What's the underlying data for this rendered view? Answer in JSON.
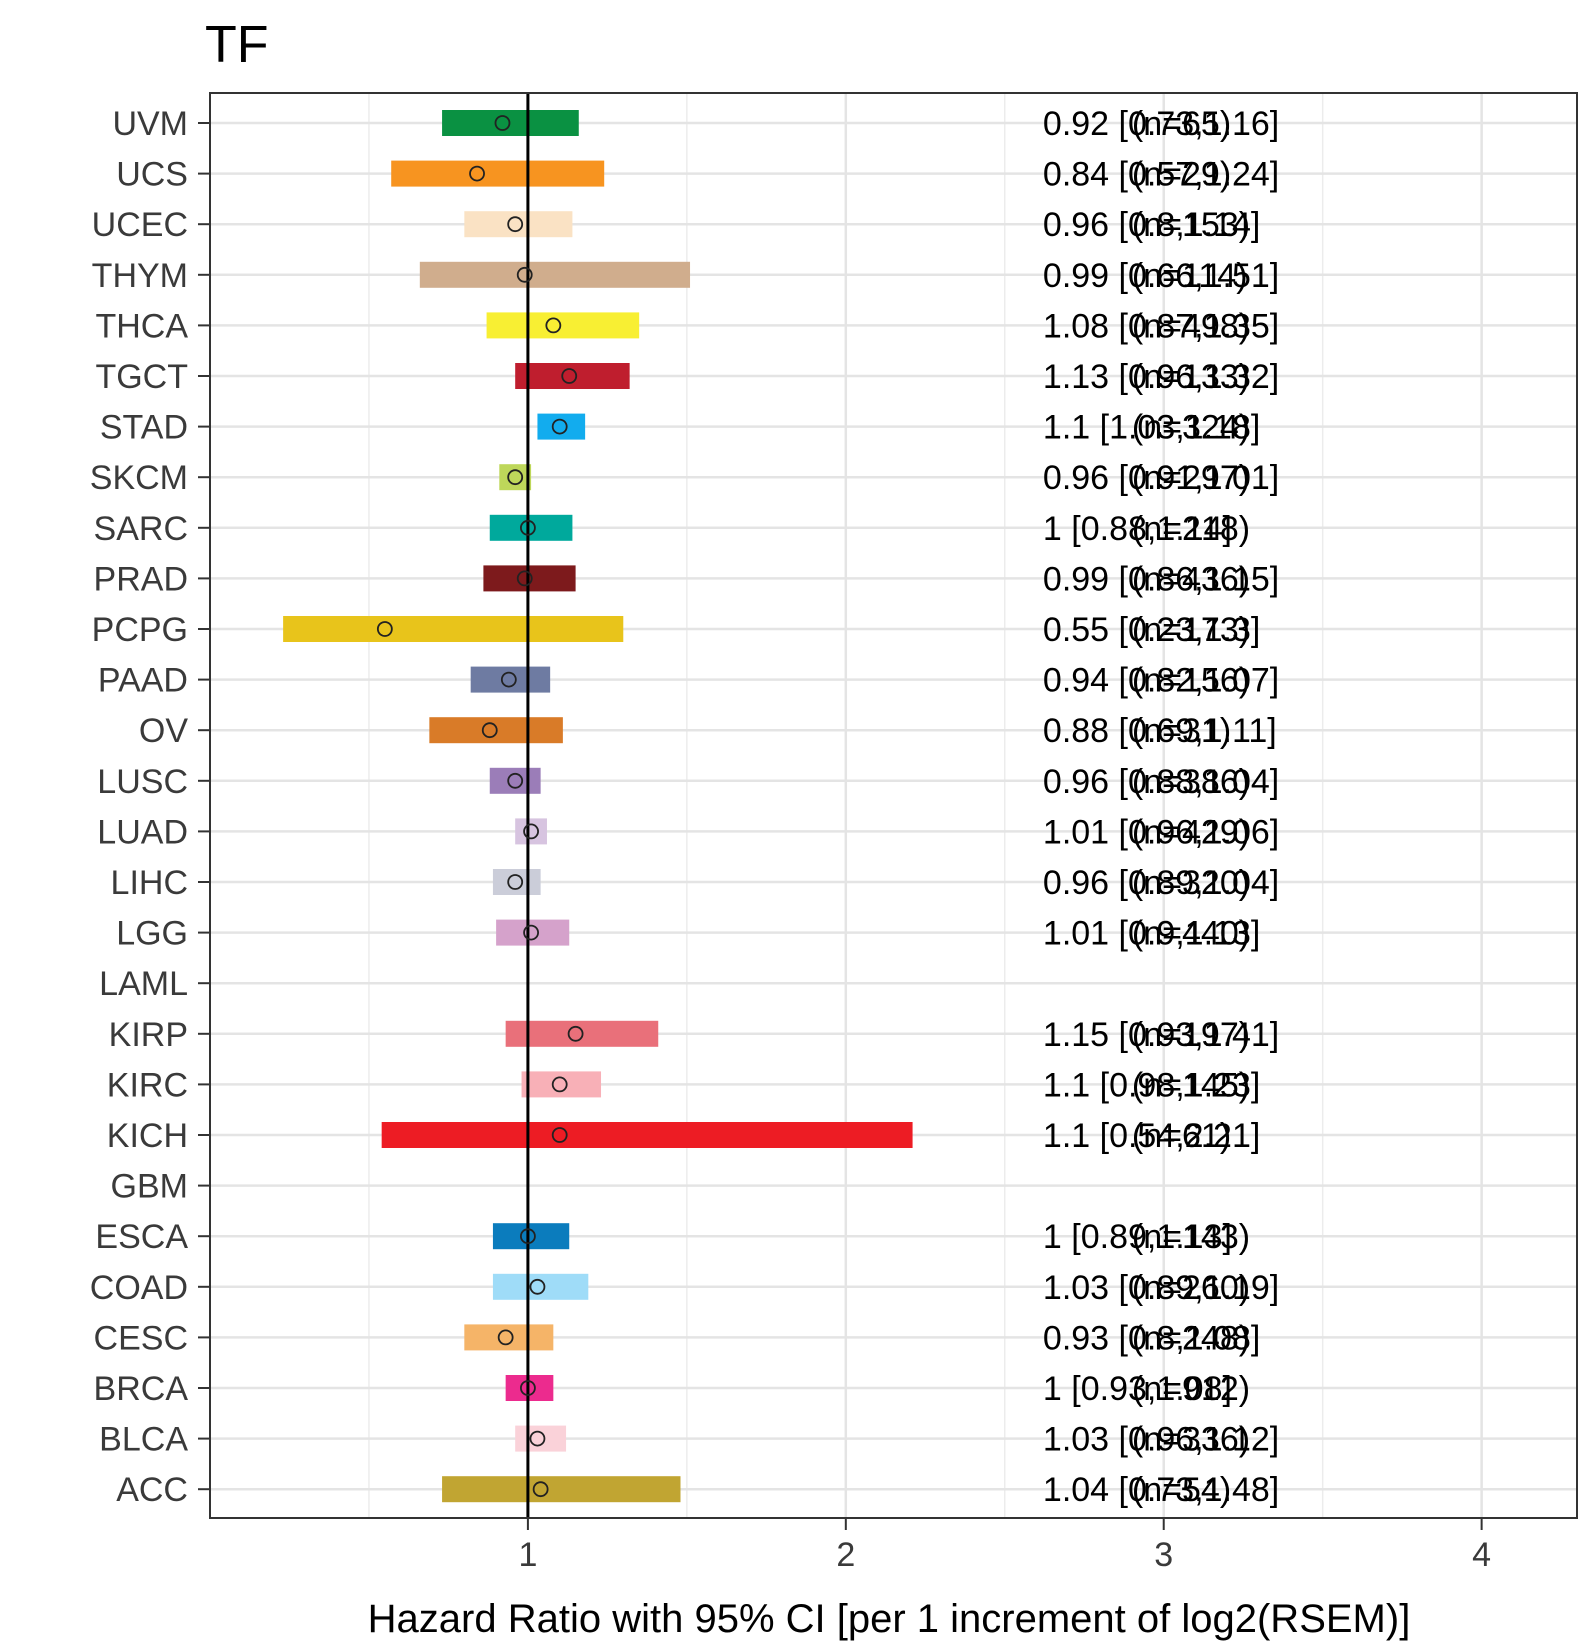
{
  "chart_data": {
    "type": "forest",
    "title": "TF",
    "xlabel": "Hazard Ratio with 95% CI [per 1 increment of log2(RSEM)]",
    "ylabel": "",
    "xlim": [
      0.0,
      4.3
    ],
    "x_ticks": [
      1,
      2,
      3,
      4
    ],
    "x_minor_ticks": [
      0.5,
      1.5,
      2.5,
      3.5
    ],
    "reference_line": 1,
    "grid": true,
    "legend": "none",
    "rows": [
      {
        "label": "UVM",
        "hr": 0.92,
        "lo": 0.73,
        "hi": 1.16,
        "ci_text": "0.92 [0.73,1.16]",
        "n_text": "(n=65)",
        "color": "#0a9142"
      },
      {
        "label": "UCS",
        "hr": 0.84,
        "lo": 0.57,
        "hi": 1.24,
        "ci_text": "0.84 [0.57,1.24]",
        "n_text": "(n=29)",
        "color": "#f79420"
      },
      {
        "label": "UCEC",
        "hr": 0.96,
        "lo": 0.8,
        "hi": 1.14,
        "ci_text": "0.96 [0.8,1.14]",
        "n_text": "(n=153)",
        "color": "#fae2c4"
      },
      {
        "label": "THYM",
        "hr": 0.99,
        "lo": 0.66,
        "hi": 1.51,
        "ci_text": "0.99 [0.66,1.51]",
        "n_text": "(n=114)",
        "color": "#d0ad8d"
      },
      {
        "label": "THCA",
        "hr": 1.08,
        "lo": 0.87,
        "hi": 1.35,
        "ci_text": "1.08 [0.87,1.35]",
        "n_text": "(n=498)",
        "color": "#f8ef33"
      },
      {
        "label": "TGCT",
        "hr": 1.13,
        "lo": 0.96,
        "hi": 1.32,
        "ci_text": "1.13 [0.96,1.32]",
        "n_text": "(n=133)",
        "color": "#bf1e2e"
      },
      {
        "label": "STAD",
        "hr": 1.1,
        "lo": 1.03,
        "hi": 1.18,
        "ci_text": "1.1 [1.03,1.18]",
        "n_text": "(n=324)",
        "color": "#12acee"
      },
      {
        "label": "SKCM",
        "hr": 0.96,
        "lo": 0.91,
        "hi": 1.01,
        "ci_text": "0.96 [0.91,1.01]",
        "n_text": "(n=297)",
        "color": "#bed75a"
      },
      {
        "label": "SARC",
        "hr": 1.0,
        "lo": 0.88,
        "hi": 1.14,
        "ci_text": "1 [0.88,1.14]",
        "n_text": "(n=218)",
        "color": "#00a99c"
      },
      {
        "label": "PRAD",
        "hr": 0.99,
        "lo": 0.86,
        "hi": 1.15,
        "ci_text": "0.99 [0.86,1.15]",
        "n_text": "(n=436)",
        "color": "#7d1a1c"
      },
      {
        "label": "PCPG",
        "hr": 0.55,
        "lo": 0.23,
        "hi": 1.3,
        "ci_text": "0.55 [0.23,1.3]",
        "n_text": "(n=173)",
        "color": "#e8c41b"
      },
      {
        "label": "PAAD",
        "hr": 0.94,
        "lo": 0.82,
        "hi": 1.07,
        "ci_text": "0.94 [0.82,1.07]",
        "n_text": "(n=156)",
        "color": "#6e7ba2"
      },
      {
        "label": "OV",
        "hr": 0.88,
        "lo": 0.69,
        "hi": 1.11,
        "ci_text": "0.88 [0.69,1.11]",
        "n_text": "(n=31)",
        "color": "#d97b28"
      },
      {
        "label": "LUSC",
        "hr": 0.96,
        "lo": 0.88,
        "hi": 1.04,
        "ci_text": "0.96 [0.88,1.04]",
        "n_text": "(n=386)",
        "color": "#9b7db8"
      },
      {
        "label": "LUAD",
        "hr": 1.01,
        "lo": 0.96,
        "hi": 1.06,
        "ci_text": "1.01 [0.96,1.06]",
        "n_text": "(n=429)",
        "color": "#d7c4e0"
      },
      {
        "label": "LIHC",
        "hr": 0.96,
        "lo": 0.89,
        "hi": 1.04,
        "ci_text": "0.96 [0.89,1.04]",
        "n_text": "(n=320)",
        "color": "#cbcdd9"
      },
      {
        "label": "LGG",
        "hr": 1.01,
        "lo": 0.9,
        "hi": 1.13,
        "ci_text": "1.01 [0.9,1.13]",
        "n_text": "(n=440)",
        "color": "#d5a2cb"
      },
      {
        "label": "LAML",
        "hr": null,
        "lo": null,
        "hi": null,
        "ci_text": "",
        "n_text": "",
        "color": ""
      },
      {
        "label": "KIRP",
        "hr": 1.15,
        "lo": 0.93,
        "hi": 1.41,
        "ci_text": "1.15 [0.93,1.41]",
        "n_text": "(n=197)",
        "color": "#e9707a"
      },
      {
        "label": "KIRC",
        "hr": 1.1,
        "lo": 0.98,
        "hi": 1.23,
        "ci_text": "1.1 [0.98,1.23]",
        "n_text": "(n=145)",
        "color": "#f8b0b7"
      },
      {
        "label": "KICH",
        "hr": 1.1,
        "lo": 0.54,
        "hi": 2.21,
        "ci_text": "1.1 [0.54,2.21]",
        "n_text": "(n=61)",
        "color": "#ed1c24"
      },
      {
        "label": "GBM",
        "hr": null,
        "lo": null,
        "hi": null,
        "ci_text": "",
        "n_text": "",
        "color": ""
      },
      {
        "label": "ESCA",
        "hr": 1.0,
        "lo": 0.89,
        "hi": 1.13,
        "ci_text": "1 [0.89,1.13]",
        "n_text": "(n=143)",
        "color": "#0b7cbd"
      },
      {
        "label": "COAD",
        "hr": 1.03,
        "lo": 0.89,
        "hi": 1.19,
        "ci_text": "1.03 [0.89,1.19]",
        "n_text": "(n=260)",
        "color": "#9fdcf8"
      },
      {
        "label": "CESC",
        "hr": 0.93,
        "lo": 0.8,
        "hi": 1.08,
        "ci_text": "0.93 [0.8,1.08]",
        "n_text": "(n=248)",
        "color": "#f5b468"
      },
      {
        "label": "BRCA",
        "hr": 1.0,
        "lo": 0.93,
        "hi": 1.08,
        "ci_text": "1 [0.93,1.08]",
        "n_text": "(n=912)",
        "color": "#ec2b8e"
      },
      {
        "label": "BLCA",
        "hr": 1.03,
        "lo": 0.96,
        "hi": 1.12,
        "ci_text": "1.03 [0.96,1.12]",
        "n_text": "(n=336)",
        "color": "#fad2d9"
      },
      {
        "label": "ACC",
        "hr": 1.04,
        "lo": 0.73,
        "hi": 1.48,
        "ci_text": "1.04 [0.73,1.48]",
        "n_text": "(n=54)",
        "color": "#c1a532"
      }
    ]
  }
}
